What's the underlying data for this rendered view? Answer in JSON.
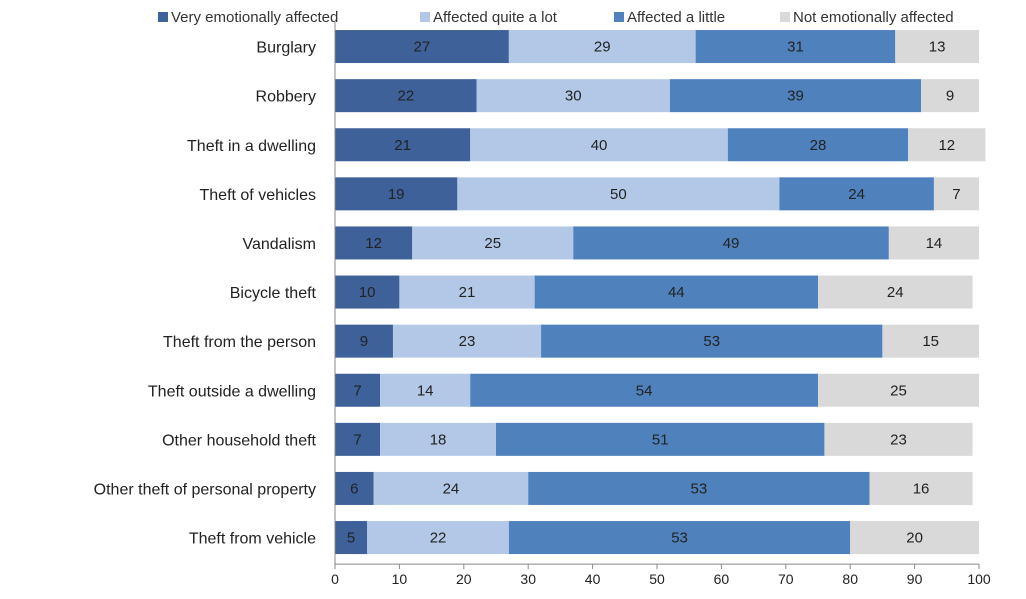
{
  "chart_data": {
    "type": "bar",
    "orientation": "horizontal",
    "stacked": true,
    "xlim": [
      0,
      100
    ],
    "xticks": [
      0,
      10,
      20,
      30,
      40,
      50,
      60,
      70,
      80,
      90,
      100
    ],
    "grid": false,
    "legend_position": "top",
    "categories": [
      "Burglary",
      "Robbery",
      "Theft in a dwelling",
      "Theft of vehicles",
      "Vandalism",
      "Bicycle theft",
      "Theft from the person",
      "Theft outside a dwelling",
      "Other household theft",
      "Other theft of personal property",
      "Theft from vehicle"
    ],
    "series": [
      {
        "name": "Very emotionally affected",
        "color": "#3d6198",
        "values": [
          27,
          22,
          21,
          19,
          12,
          10,
          9,
          7,
          7,
          6,
          5
        ]
      },
      {
        "name": "Affected quite a lot",
        "color": "#b3c8e7",
        "values": [
          29,
          30,
          40,
          50,
          25,
          21,
          23,
          14,
          18,
          24,
          22
        ]
      },
      {
        "name": "Affected a little",
        "color": "#4f81bd",
        "values": [
          31,
          39,
          28,
          24,
          49,
          44,
          53,
          54,
          51,
          53,
          53
        ]
      },
      {
        "name": "Not emotionally affected",
        "color": "#d9d9d9",
        "values": [
          13,
          9,
          12,
          7,
          14,
          24,
          15,
          25,
          23,
          16,
          20
        ]
      }
    ]
  }
}
